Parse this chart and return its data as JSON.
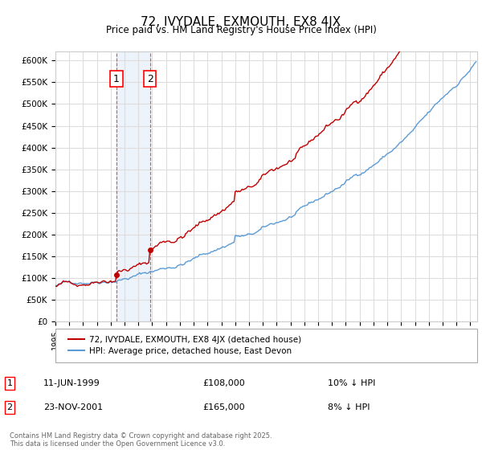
{
  "title": "72, IVYDALE, EXMOUTH, EX8 4JX",
  "subtitle": "Price paid vs. HM Land Registry's House Price Index (HPI)",
  "ylabel_ticks": [
    "£0",
    "£50K",
    "£100K",
    "£150K",
    "£200K",
    "£250K",
    "£300K",
    "£350K",
    "£400K",
    "£450K",
    "£500K",
    "£550K",
    "£600K"
  ],
  "ylim": [
    0,
    620000
  ],
  "yticks": [
    0,
    50000,
    100000,
    150000,
    200000,
    250000,
    300000,
    350000,
    400000,
    450000,
    500000,
    550000,
    600000
  ],
  "hpi_color": "#5b9bd5",
  "price_color": "#c00000",
  "legend_hpi": "HPI: Average price, detached house, East Devon",
  "legend_price": "72, IVYDALE, EXMOUTH, EX8 4JX (detached house)",
  "sale1_date": "11-JUN-1999",
  "sale1_price": 108000,
  "sale1_label": "10% ↓ HPI",
  "sale2_date": "23-NOV-2001",
  "sale2_price": 165000,
  "sale2_label": "8% ↓ HPI",
  "footnote": "Contains HM Land Registry data © Crown copyright and database right 2025.\nThis data is licensed under the Open Government Licence v3.0.",
  "background_color": "#ffffff",
  "grid_color": "#dddddd",
  "shade_color": "#c5d9f1"
}
